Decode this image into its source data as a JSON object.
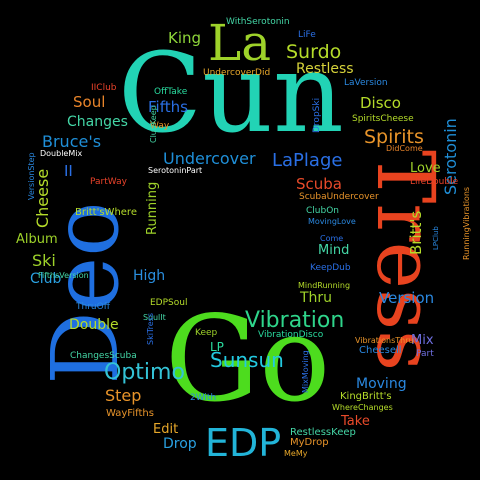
{
  "words": [
    {
      "text": "Cun",
      "color": "#22d3b5",
      "font": "serif"
    },
    {
      "text": "Go",
      "color": "#4ddc1e",
      "font": "serif"
    },
    {
      "text": "Deo",
      "color": "#1f6fe0",
      "font": "serif"
    },
    {
      "text": "Tress",
      "color": "#e8431f",
      "font": "serif"
    },
    {
      "text": "La",
      "color": "#9ed22a",
      "font": "serif"
    },
    {
      "text": "EDP",
      "color": "#22b4d8",
      "font": "sans"
    },
    {
      "text": "Vibration",
      "color": "#2fd58b",
      "font": "sans"
    },
    {
      "text": "Optimo",
      "color": "#34c3d6",
      "font": "sans"
    },
    {
      "text": "Sunsun",
      "color": "#23c9e0",
      "font": "sans"
    },
    {
      "text": "Undercover",
      "color": "#1f8fd8",
      "font": "sans"
    },
    {
      "text": "LaPlage",
      "color": "#2a6fe5",
      "font": "sans"
    },
    {
      "text": "Surdo",
      "color": "#b5dc2a",
      "font": "sans"
    },
    {
      "text": "King",
      "color": "#8fd63a",
      "font": "sans"
    },
    {
      "text": "Restless",
      "color": "#d6d23a",
      "font": "sans"
    },
    {
      "text": "Disco",
      "color": "#b5dc2a",
      "font": "sans"
    },
    {
      "text": "Spirits",
      "color": "#e8942a",
      "font": "sans"
    },
    {
      "text": "Love",
      "color": "#9ed22a",
      "font": "sans"
    },
    {
      "text": "Scuba",
      "color": "#e84a2a",
      "font": "sans"
    },
    {
      "text": "Serotonin",
      "color": "#1f8fd8",
      "font": "sans"
    },
    {
      "text": "Britt's",
      "color": "#b5dc2a",
      "font": "sans"
    },
    {
      "text": "Version",
      "color": "#2a88e0",
      "font": "sans"
    },
    {
      "text": "Soul",
      "color": "#e8842a",
      "font": "sans"
    },
    {
      "text": "Changes",
      "color": "#44d6a6",
      "font": "sans"
    },
    {
      "text": "Fifths",
      "color": "#2a6fe5",
      "font": "sans"
    },
    {
      "text": "Bruce's",
      "color": "#1f8fd8",
      "font": "sans"
    },
    {
      "text": "Cheese",
      "color": "#b5dc2a",
      "font": "sans"
    },
    {
      "text": "Running",
      "color": "#9ed22a",
      "font": "sans"
    },
    {
      "text": "Ski",
      "color": "#9ed22a",
      "font": "sans"
    },
    {
      "text": "Album",
      "color": "#9ed22a",
      "font": "sans"
    },
    {
      "text": "Club",
      "color": "#2aa0e0",
      "font": "sans"
    },
    {
      "text": "High",
      "color": "#2a8fe0",
      "font": "sans"
    },
    {
      "text": "Double",
      "color": "#b5dc2a",
      "font": "sans"
    },
    {
      "text": "Step",
      "color": "#e8942a",
      "font": "sans"
    },
    {
      "text": "Edit",
      "color": "#e8a82a",
      "font": "sans"
    },
    {
      "text": "Drop",
      "color": "#2aa0e0",
      "font": "sans"
    },
    {
      "text": "Moving",
      "color": "#2a88e0",
      "font": "sans"
    },
    {
      "text": "Take",
      "color": "#e84a2a",
      "font": "sans"
    },
    {
      "text": "Mix",
      "color": "#6f6fe0",
      "font": "sans"
    },
    {
      "text": "Thru",
      "color": "#9ed22a",
      "font": "sans"
    },
    {
      "text": "Mind",
      "color": "#44d6a6",
      "font": "sans"
    },
    {
      "text": "LP",
      "color": "#2adca0",
      "font": "sans"
    },
    {
      "text": "II",
      "color": "#2a6fe5",
      "font": "sans"
    },
    {
      "text": "WithSerotonin",
      "color": "#44d6a6",
      "font": "sans"
    },
    {
      "text": "LiFe",
      "color": "#2a6fe5",
      "font": "sans"
    },
    {
      "text": "UndercoverDid",
      "color": "#e8a82a",
      "font": "sans"
    },
    {
      "text": "LaVersion",
      "color": "#2a88e0",
      "font": "sans"
    },
    {
      "text": "IIClub",
      "color": "#e8422a",
      "font": "sans"
    },
    {
      "text": "OffTake",
      "color": "#2adca0",
      "font": "sans"
    },
    {
      "text": "Way",
      "color": "#e8942a",
      "font": "sans"
    },
    {
      "text": "DropSki",
      "color": "#2a6fe5",
      "font": "sans"
    },
    {
      "text": "SpiritsCheese",
      "color": "#b5dc2a",
      "font": "sans"
    },
    {
      "text": "DidCome",
      "color": "#e8842a",
      "font": "sans"
    },
    {
      "text": "DoubleMix",
      "color": "#ffffff",
      "font": "sans"
    },
    {
      "text": "VersionStep",
      "color": "#2a88e0",
      "font": "sans"
    },
    {
      "text": "PartWay",
      "color": "#e8422a",
      "font": "sans"
    },
    {
      "text": "SerotoninPart",
      "color": "#ffffff",
      "font": "sans"
    },
    {
      "text": "ClubKeep",
      "color": "#44d6a6",
      "font": "sans"
    },
    {
      "text": "LifeDouble",
      "color": "#e8422a",
      "font": "sans"
    },
    {
      "text": "RunningVibrations",
      "color": "#e8942a",
      "font": "sans"
    },
    {
      "text": "Britt'sWhere",
      "color": "#b5dc2a",
      "font": "sans"
    },
    {
      "text": "ScubaUndercover",
      "color": "#e8942a",
      "font": "sans"
    },
    {
      "text": "ClubOn",
      "color": "#44d6a6",
      "font": "sans"
    },
    {
      "text": "MovingLove",
      "color": "#2a88e0",
      "font": "sans"
    },
    {
      "text": "Come",
      "color": "#2a6fe5",
      "font": "sans"
    },
    {
      "text": "LPClub",
      "color": "#2a88e0",
      "font": "sans"
    },
    {
      "text": "KeepDub",
      "color": "#2a6fe5",
      "font": "sans"
    },
    {
      "text": "FifthsVersion",
      "color": "#44d6a6",
      "font": "sans"
    },
    {
      "text": "MindRunning",
      "color": "#b5dc2a",
      "font": "sans"
    },
    {
      "text": "ThruOff",
      "color": "#2a88e0",
      "font": "sans"
    },
    {
      "text": "EDPSoul",
      "color": "#b5dc2a",
      "font": "sans"
    },
    {
      "text": "SoulIt",
      "color": "#44d6a6",
      "font": "sans"
    },
    {
      "text": "SkiTress",
      "color": "#2a6fe5",
      "font": "sans"
    },
    {
      "text": "VibrationDisco",
      "color": "#2adca0",
      "font": "sans"
    },
    {
      "text": "VibrationsThru",
      "color": "#e8942a",
      "font": "sans"
    },
    {
      "text": "Keep",
      "color": "#9ed22a",
      "font": "sans"
    },
    {
      "text": "Cheesell",
      "color": "#2a88e0",
      "font": "sans"
    },
    {
      "text": "Part",
      "color": "#6f6fe0",
      "font": "sans"
    },
    {
      "text": "ChangesScuba",
      "color": "#44d6a6",
      "font": "sans"
    },
    {
      "text": "MixMoving",
      "color": "#2a6fe5",
      "font": "sans"
    },
    {
      "text": "KingBritt's",
      "color": "#b5dc2a",
      "font": "sans"
    },
    {
      "text": "WhereChanges",
      "color": "#b5dc2a",
      "font": "sans"
    },
    {
      "text": "2With",
      "color": "#2a88e0",
      "font": "sans"
    },
    {
      "text": "WayFifths",
      "color": "#e8942a",
      "font": "sans"
    },
    {
      "text": "RestlessKeep",
      "color": "#44d6a6",
      "font": "sans"
    },
    {
      "text": "MyDrop",
      "color": "#e8942a",
      "font": "sans"
    },
    {
      "text": "MeMy",
      "color": "#e8a82a",
      "font": "sans"
    }
  ]
}
